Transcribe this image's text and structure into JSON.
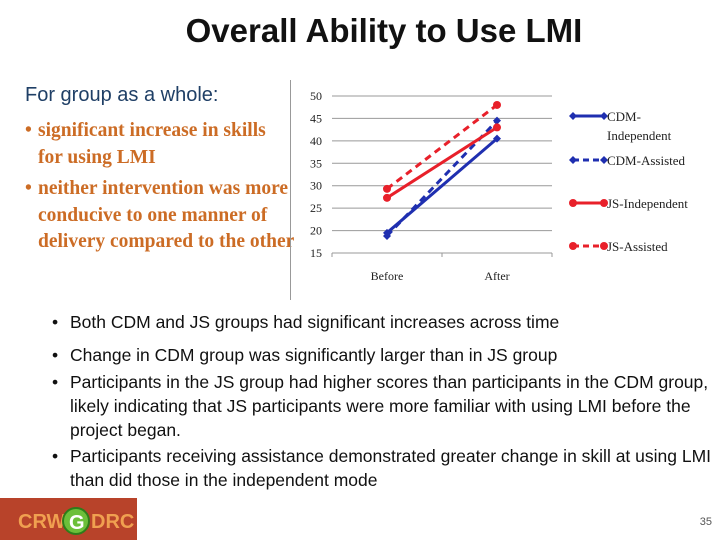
{
  "title": "Overall Ability to Use LMI",
  "group_heading": "For group as a whole:",
  "left_bullets": [
    "significant increase in skills for using LMI",
    "neither intervention was more conducive to one manner of delivery compared to the other"
  ],
  "bottom_bullets": [
    "Both CDM and JS groups had significant increases across time",
    "Change in CDM group was significantly larger than in JS group",
    "Participants in the JS group had higher scores than participants in the CDM group, likely indicating that JS participants were more familiar with using LMI before the project began.",
    "Participants receiving assistance demonstrated greater change in skill at using LMI than did those in the independent mode"
  ],
  "logo_text": "CRWGDRC",
  "page_number": "35",
  "chart_data": {
    "type": "line",
    "categories": [
      "Before",
      "After"
    ],
    "ylim": [
      15,
      50
    ],
    "yticks": [
      "15",
      "20",
      "25",
      "30",
      "35",
      "40",
      "45",
      "50"
    ],
    "grid": true,
    "legend": "right",
    "series": [
      {
        "name": "CDM-Independent",
        "legend_lines": [
          "CDM-",
          "Independent"
        ],
        "values": [
          19.5,
          40.5
        ],
        "color": "#1f2fb0",
        "dashed": false,
        "marker": "diamond"
      },
      {
        "name": "CDM-Assisted",
        "legend_lines": [
          "CDM-Assisted"
        ],
        "values": [
          18.8,
          44.5
        ],
        "color": "#1f2fb0",
        "dashed": true,
        "marker": "diamond"
      },
      {
        "name": "JS-Independent",
        "legend_lines": [
          "JS-Independent"
        ],
        "values": [
          27.3,
          43
        ],
        "color": "#e8202a",
        "dashed": false,
        "marker": "circle"
      },
      {
        "name": "JS-Assisted",
        "legend_lines": [
          "JS-Assisted"
        ],
        "values": [
          29.3,
          48
        ],
        "color": "#e8202a",
        "dashed": true,
        "marker": "circle"
      }
    ]
  }
}
